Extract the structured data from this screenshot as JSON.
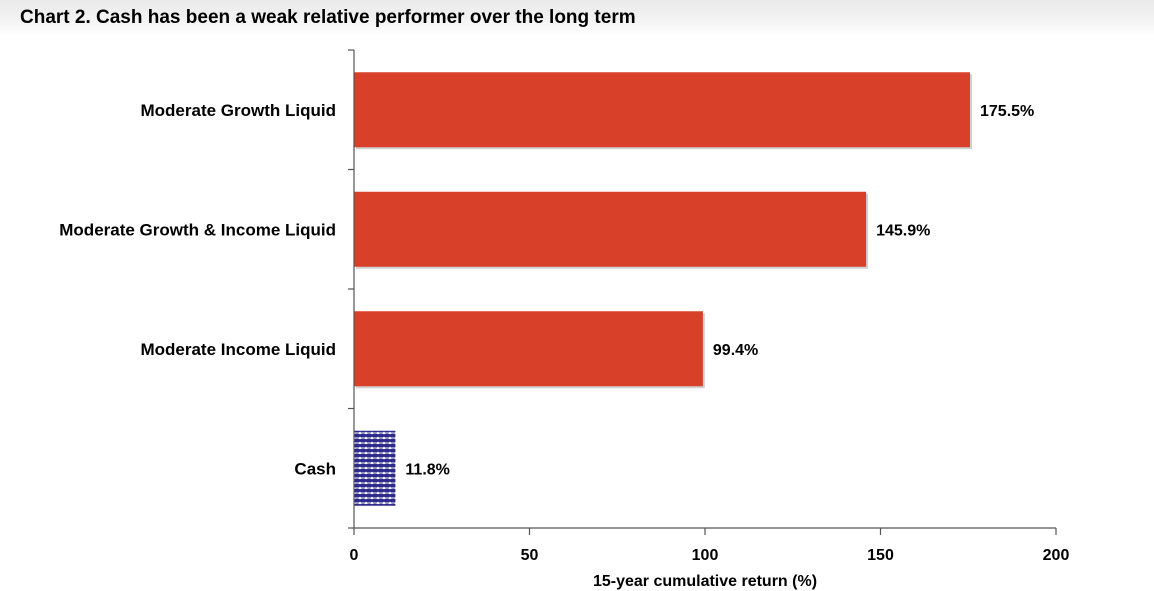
{
  "chart_data": {
    "type": "bar",
    "orientation": "horizontal",
    "title": "Chart 2. Cash has been a weak relative performer over the long term",
    "xlabel": "15-year cumulative return (%)",
    "ylabel": "",
    "xlim": [
      0,
      200
    ],
    "xticks": [
      0,
      50,
      100,
      150,
      200
    ],
    "categories": [
      "Moderate Growth Liquid",
      "Moderate Growth & Income Liquid",
      "Moderate Income Liquid",
      "Cash"
    ],
    "values": [
      175.5,
      145.9,
      99.4,
      11.8
    ],
    "value_labels": [
      "175.5%",
      "145.9%",
      "99.4%",
      "11.8%"
    ],
    "bar_styles": [
      "solid",
      "solid",
      "solid",
      "pattern"
    ],
    "grid": false,
    "legend": "none",
    "colors": {
      "bar": "#d8402a",
      "cash_pattern_fg": "#2d2a8c",
      "cash_pattern_bg": "#ffffff",
      "axis": "#555555"
    }
  }
}
